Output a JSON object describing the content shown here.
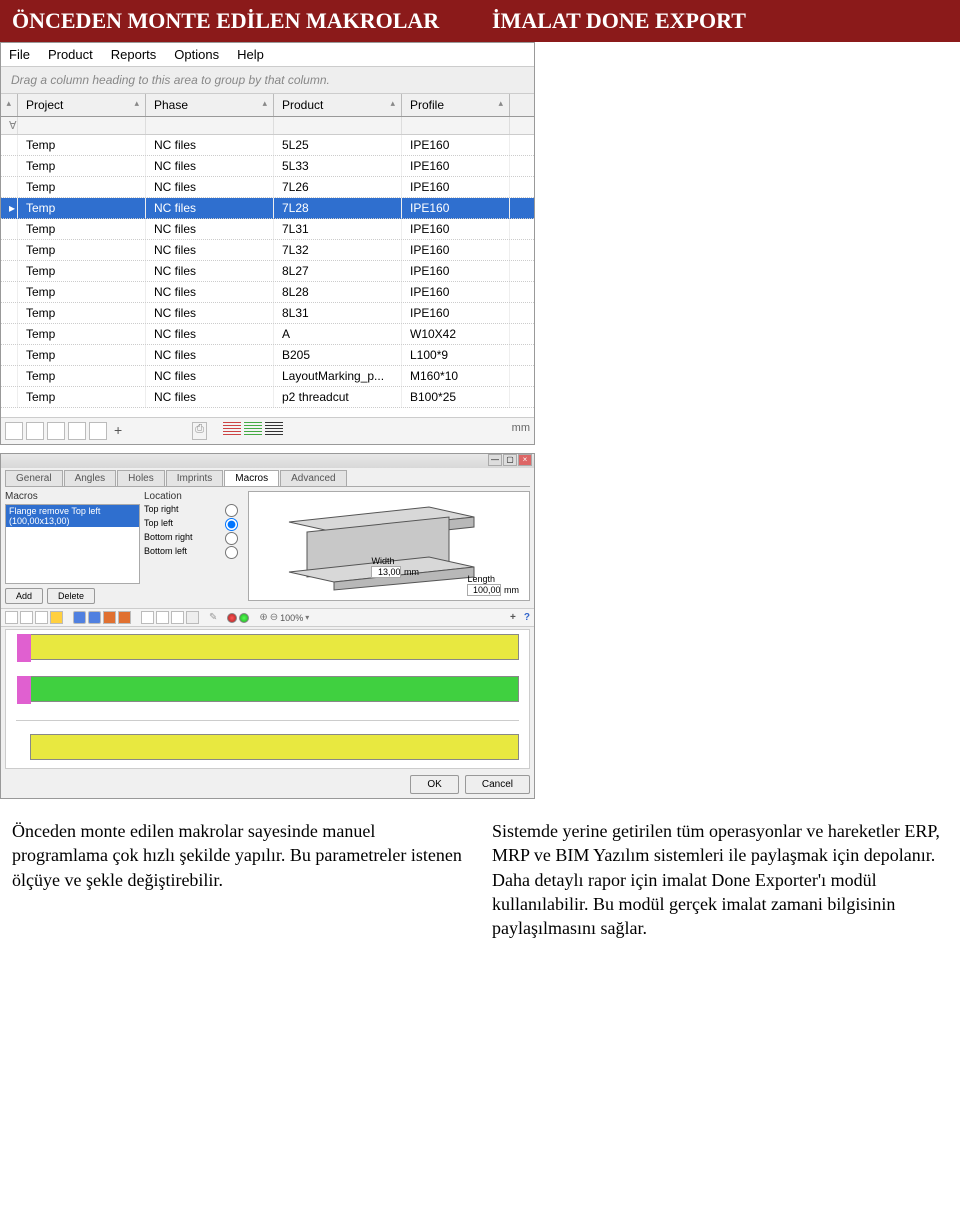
{
  "header": {
    "left": "ÖNCEDEN MONTE EDİLEN MAKROLAR",
    "right": "İMALAT DONE EXPORT"
  },
  "app": {
    "menu": [
      "File",
      "Product",
      "Reports",
      "Options",
      "Help"
    ],
    "group_hint": "Drag a column heading to this area to group by that column.",
    "columns": [
      "Project",
      "Phase",
      "Product",
      "Profile"
    ],
    "filter_icon": "∀",
    "rows": [
      {
        "project": "Temp",
        "phase": "NC files",
        "product": "5L25",
        "profile": "IPE160",
        "selected": false
      },
      {
        "project": "Temp",
        "phase": "NC files",
        "product": "5L33",
        "profile": "IPE160",
        "selected": false
      },
      {
        "project": "Temp",
        "phase": "NC files",
        "product": "7L26",
        "profile": "IPE160",
        "selected": false
      },
      {
        "project": "Temp",
        "phase": "NC files",
        "product": "7L28",
        "profile": "IPE160",
        "selected": true
      },
      {
        "project": "Temp",
        "phase": "NC files",
        "product": "7L31",
        "profile": "IPE160",
        "selected": false
      },
      {
        "project": "Temp",
        "phase": "NC files",
        "product": "7L32",
        "profile": "IPE160",
        "selected": false
      },
      {
        "project": "Temp",
        "phase": "NC files",
        "product": "8L27",
        "profile": "IPE160",
        "selected": false
      },
      {
        "project": "Temp",
        "phase": "NC files",
        "product": "8L28",
        "profile": "IPE160",
        "selected": false
      },
      {
        "project": "Temp",
        "phase": "NC files",
        "product": "8L31",
        "profile": "IPE160",
        "selected": false
      },
      {
        "project": "Temp",
        "phase": "NC files",
        "product": "A",
        "profile": "W10X42",
        "selected": false
      },
      {
        "project": "Temp",
        "phase": "NC files",
        "product": "B205",
        "profile": "L100*9",
        "selected": false
      },
      {
        "project": "Temp",
        "phase": "NC files",
        "product": "LayoutMarking_p...",
        "profile": "M160*10",
        "selected": false
      },
      {
        "project": "Temp",
        "phase": "NC files",
        "product": "p2 threadcut",
        "profile": "B100*25",
        "selected": false
      }
    ],
    "footer_text": "mm"
  },
  "detail": {
    "tabs": [
      "General",
      "Angles",
      "Holes",
      "Imprints",
      "Macros",
      "Advanced"
    ],
    "active_tab": "Macros",
    "macros_label": "Macros",
    "macros_item": "Flange remove Top left (100,00x13,00)",
    "location_label": "Location",
    "radios": [
      "Top right",
      "Top left",
      "Bottom right",
      "Bottom left"
    ],
    "selected_radio": "Top left",
    "width_label": "Width",
    "width_value": "13,00",
    "length_label": "Length",
    "length_value": "100,00",
    "unit": "mm",
    "add_btn": "Add",
    "delete_btn": "Delete",
    "zoom": "100%",
    "plus_icon": "+",
    "help_icon": "?",
    "ok_btn": "OK",
    "cancel_btn": "Cancel"
  },
  "body_text": {
    "left": "Önceden monte edilen makrolar sayesinde manuel programlama çok hızlı şekilde yapılır. Bu parametreler istenen ölçüye ve şekle değiştirebilir.",
    "right": "Sistemde yerine getirilen tüm operasyonlar ve hareketler ERP, MRP ve BIM Yazılım sistemleri ile paylaşmak için depolanır. Daha detaylı rapor için imalat Done Exporter'ı modül kullanılabilir. Bu modül gerçek imalat zamani bilgisinin paylaşılmasını sağlar."
  },
  "colors": {
    "header_bg": "#8b1a1a",
    "selected_row": "#2f6fcf",
    "yellow_bar": "#e8e840",
    "green_bar": "#40d040",
    "pink_cap": "#e060d0"
  }
}
